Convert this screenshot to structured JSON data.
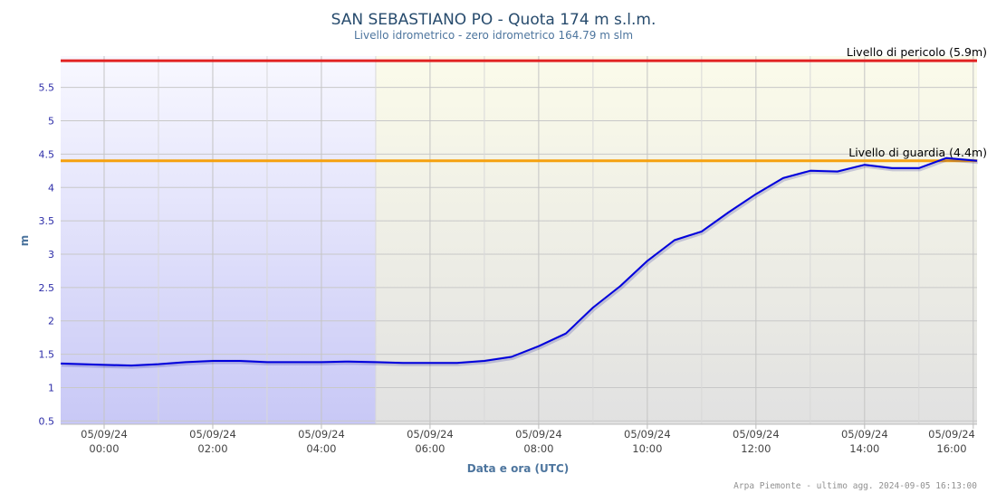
{
  "chart_data": {
    "type": "line",
    "title": "SAN SEBASTIANO PO - Quota 174 m s.l.m.",
    "subtitle": "Livello idrometrico - zero idrometrico 164.79 m slm",
    "ylabel": "m",
    "xlabel": "Data e ora (UTC)",
    "ylim": [
      0.45,
      5.97
    ],
    "xlim": [
      "05/09/24 23:12",
      "05/09/24 16:04"
    ],
    "x_date_labels": [
      "05/09/24",
      "05/09/24",
      "05/09/24",
      "05/09/24",
      "05/09/24",
      "05/09/24",
      "05/09/24",
      "05/09/24",
      "05/09/24"
    ],
    "x_time_labels": [
      "00:00",
      "02:00",
      "04:00",
      "06:00",
      "08:00",
      "10:00",
      "12:00",
      "14:00",
      "16:00"
    ],
    "x_tick_hours": [
      0,
      2,
      4,
      6,
      8,
      10,
      12,
      14,
      16
    ],
    "y_ticks": [
      0.5,
      1,
      1.5,
      2,
      2.5,
      3,
      3.5,
      4,
      4.5,
      5,
      5.5
    ],
    "y_tick_labels": [
      "0.5",
      "1",
      "1.5",
      "2",
      "2.5",
      "3",
      "3.5",
      "4",
      "4.5",
      "5",
      "5.5"
    ],
    "grid": true,
    "legend": "none",
    "bands": [
      {
        "from_hour": -0.8,
        "to_hour": 5,
        "color": "#dcdcfb"
      },
      {
        "from_hour": 5,
        "to_hour": 16.07,
        "color": "#f1f1e2"
      }
    ],
    "reference_lines": [
      {
        "label": "Livello di pericolo (5.9m)",
        "value": 5.9,
        "color": "#e12222"
      },
      {
        "label": "Livello di guardia (4.4m)",
        "value": 4.4,
        "color": "#f5a10f"
      }
    ],
    "series": [
      {
        "color": "#0000dd",
        "hours": [
          -0.8,
          0,
          0.5,
          1,
          1.5,
          2,
          2.5,
          3,
          3.5,
          4,
          4.5,
          5,
          5.5,
          6,
          6.5,
          7,
          7.5,
          8,
          8.5,
          9,
          9.5,
          10,
          10.5,
          11,
          11.5,
          12,
          12.5,
          13,
          13.5,
          14,
          14.5,
          15,
          15.5,
          16.07
        ],
        "values": [
          1.36,
          1.34,
          1.33,
          1.35,
          1.38,
          1.4,
          1.4,
          1.38,
          1.38,
          1.38,
          1.39,
          1.38,
          1.37,
          1.37,
          1.37,
          1.4,
          1.46,
          1.62,
          1.81,
          2.2,
          2.52,
          2.9,
          3.21,
          3.34,
          3.63,
          3.9,
          4.14,
          4.25,
          4.24,
          4.34,
          4.29,
          4.29,
          4.44,
          4.4
        ]
      }
    ]
  },
  "credits": "Arpa Piemonte - ultimo agg. 2024-09-05 16:13:00"
}
